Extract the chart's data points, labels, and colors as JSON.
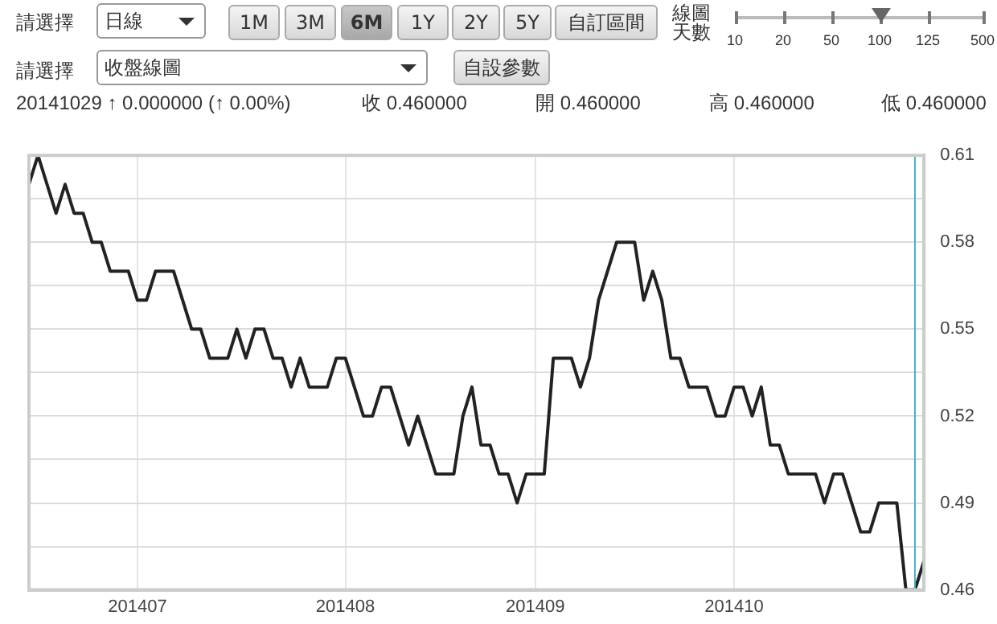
{
  "chart_data": {
    "type": "line",
    "categories": [
      null,
      null,
      null,
      null,
      null,
      null,
      null,
      null,
      null,
      null,
      null,
      null,
      "201407",
      null,
      null,
      null,
      null,
      null,
      null,
      null,
      null,
      null,
      null,
      null,
      null,
      null,
      null,
      null,
      null,
      null,
      null,
      null,
      null,
      null,
      null,
      "201408",
      null,
      null,
      null,
      null,
      null,
      null,
      null,
      null,
      null,
      null,
      null,
      null,
      null,
      null,
      null,
      null,
      null,
      null,
      null,
      null,
      "201409",
      null,
      null,
      null,
      null,
      null,
      null,
      null,
      null,
      null,
      null,
      null,
      null,
      null,
      null,
      null,
      null,
      null,
      null,
      null,
      null,
      null,
      "201410",
      null,
      null,
      null,
      null,
      null,
      null,
      null,
      null,
      null,
      null,
      null,
      null,
      null,
      null,
      null,
      null,
      null,
      null,
      null,
      null,
      null
    ],
    "series": [
      {
        "color": "#222222",
        "values": [
          0.6,
          0.61,
          0.6,
          0.59,
          0.6,
          0.59,
          0.59,
          0.58,
          0.58,
          0.57,
          0.57,
          0.57,
          0.56,
          0.56,
          0.57,
          0.57,
          0.57,
          0.56,
          0.55,
          0.55,
          0.54,
          0.54,
          0.54,
          0.55,
          0.54,
          0.55,
          0.55,
          0.54,
          0.54,
          0.53,
          0.54,
          0.53,
          0.53,
          0.53,
          0.54,
          0.54,
          0.53,
          0.52,
          0.52,
          0.53,
          0.53,
          0.52,
          0.51,
          0.52,
          0.51,
          0.5,
          0.5,
          0.5,
          0.52,
          0.53,
          0.51,
          0.51,
          0.5,
          0.5,
          0.49,
          0.5,
          0.5,
          0.5,
          0.54,
          0.54,
          0.54,
          0.53,
          0.54,
          0.56,
          0.57,
          0.58,
          0.58,
          0.58,
          0.56,
          0.57,
          0.56,
          0.54,
          0.54,
          0.53,
          0.53,
          0.53,
          0.52,
          0.52,
          0.53,
          0.53,
          0.52,
          0.53,
          0.51,
          0.51,
          0.5,
          0.5,
          0.5,
          0.5,
          0.49,
          0.5,
          0.5,
          0.49,
          0.48,
          0.48,
          0.49,
          0.49,
          0.49,
          0.46,
          0.46,
          0.47
        ]
      }
    ],
    "ylim": [
      0.46,
      0.61
    ],
    "yticks": [
      0.46,
      {
        "value": 0.475,
        "label": null
      },
      0.49,
      {
        "value": 0.505,
        "label": null
      },
      0.52,
      {
        "value": 0.535,
        "label": null
      },
      0.55,
      {
        "value": 0.565,
        "label": null
      },
      0.58,
      {
        "value": 0.595,
        "label": null
      },
      0.61
    ],
    "grid": true,
    "annotations": [
      "請選擇",
      "日線",
      "1M",
      "3M",
      "6M",
      "1Y",
      "2Y",
      "5Y",
      "自訂區間",
      "線圖天數",
      "10",
      "20",
      "50",
      "100",
      "125",
      "500",
      "請選擇",
      "收盤線圖",
      "自設參數",
      "20141029 ↑ 0.000000 (↑ 0.00%)",
      "收 0.460000",
      "開 0.460000",
      "高 0.460000",
      "低 0.460000"
    ]
  }
}
